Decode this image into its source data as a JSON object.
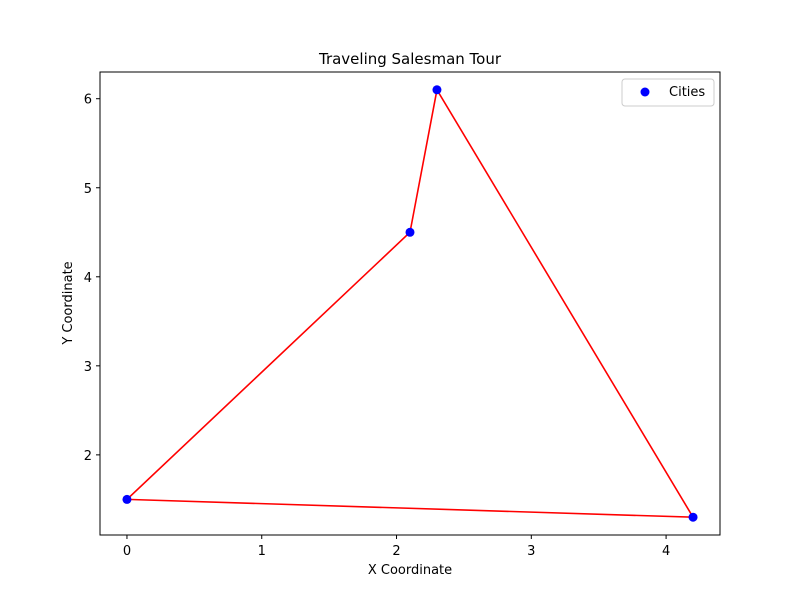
{
  "chart_data": {
    "type": "scatter",
    "title": "Traveling Salesman Tour",
    "xlabel": "X Coordinate",
    "ylabel": "Y Coordinate",
    "xlim": [
      -0.2,
      4.4
    ],
    "ylim": [
      1.1,
      6.3
    ],
    "x_ticks": [
      0,
      1,
      2,
      3,
      4
    ],
    "y_ticks": [
      2,
      3,
      4,
      5,
      6
    ],
    "grid": false,
    "legend": {
      "placement": "top-right",
      "entries": [
        "Cities"
      ]
    },
    "colors": {
      "cities": "#0000ff",
      "tour": "#ff0000"
    },
    "series": [
      {
        "name": "Cities",
        "kind": "scatter",
        "points": [
          {
            "x": 0.0,
            "y": 1.5
          },
          {
            "x": 2.1,
            "y": 4.5
          },
          {
            "x": 2.3,
            "y": 6.1
          },
          {
            "x": 4.2,
            "y": 1.3
          }
        ]
      },
      {
        "kind": "line",
        "points": [
          {
            "x": 0.0,
            "y": 1.5
          },
          {
            "x": 2.1,
            "y": 4.5
          },
          {
            "x": 2.3,
            "y": 6.1
          },
          {
            "x": 4.2,
            "y": 1.3
          },
          {
            "x": 0.0,
            "y": 1.5
          }
        ]
      }
    ]
  }
}
